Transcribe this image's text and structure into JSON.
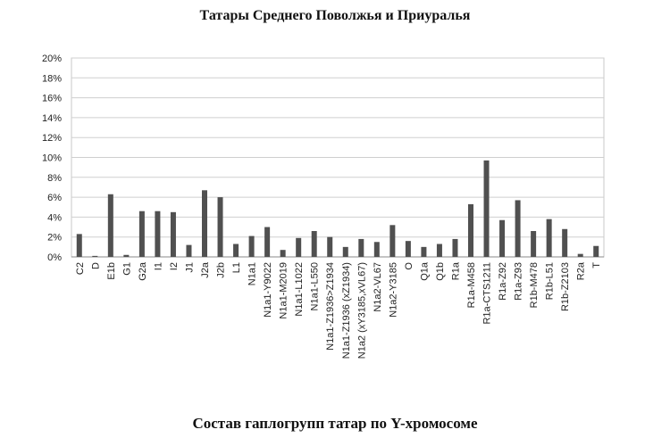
{
  "chart_data": {
    "type": "bar",
    "title": "Татары Среднего Поволжья и Приуралья",
    "xlabel": "Состав гаплогрупп татар по Y-хромосоме",
    "ylabel": "",
    "ylim": [
      0,
      20
    ],
    "y_ticks": [
      "0%",
      "2%",
      "4%",
      "6%",
      "8%",
      "10%",
      "12%",
      "14%",
      "16%",
      "18%",
      "20%"
    ],
    "grid": true,
    "bar_color": "#505050",
    "categories": [
      "C2",
      "D",
      "E1b",
      "G1",
      "G2a",
      "I1",
      "I2",
      "J1",
      "J2a",
      "J2b",
      "L1",
      "N1a1",
      "N1a1-Y9022",
      "N1a1-M2019",
      "N1a1-L1022",
      "N1a1-L550",
      "N1a1-Z1936>Z1934",
      "N1a1-Z1936 (xZ1934)",
      "N1a2 (xY3185,xVL67)",
      "N1a2-VL67",
      "N1a2-Y3185",
      "O",
      "Q1a",
      "Q1b",
      "R1a",
      "R1a-M458",
      "R1a-CTS1211",
      "R1a-Z92",
      "R1a-Z93",
      "R1b-M478",
      "R1b-L51",
      "R1b-Z2103",
      "R2a",
      "T"
    ],
    "values": [
      2.3,
      0.1,
      6.3,
      0.2,
      4.6,
      4.6,
      4.5,
      1.2,
      6.7,
      6.0,
      1.3,
      2.1,
      3.0,
      0.7,
      1.9,
      2.6,
      2.0,
      1.0,
      1.8,
      1.5,
      3.2,
      1.6,
      1.0,
      1.3,
      1.8,
      5.3,
      9.7,
      3.7,
      5.7,
      2.6,
      3.8,
      2.8,
      0.3,
      1.1
    ]
  }
}
